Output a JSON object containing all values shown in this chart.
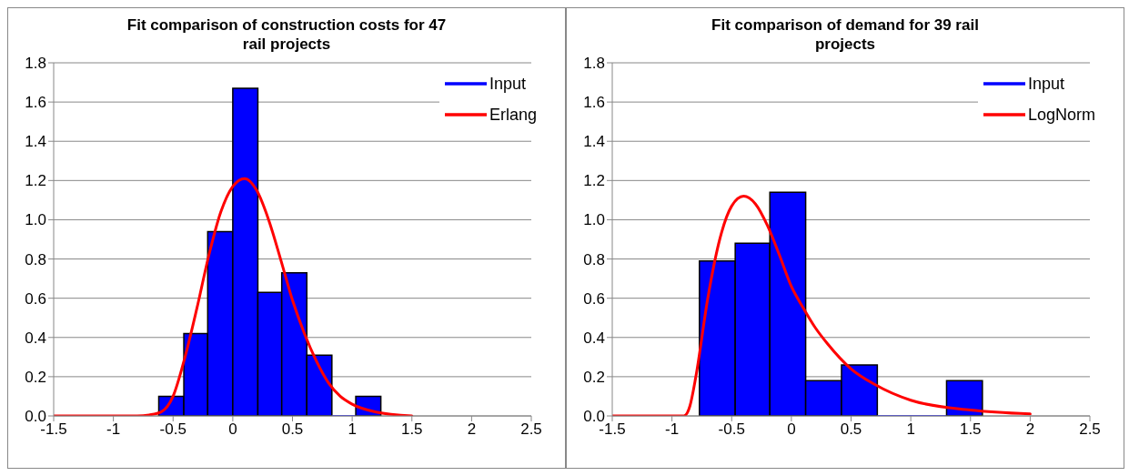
{
  "chart_data": [
    {
      "type": "histogram",
      "title": "Fit comparison of construction costs for 47 rail projects",
      "bins": [
        -0.62,
        -0.41,
        -0.21,
        0,
        0.21,
        0.41,
        0.62,
        0.83,
        1.03,
        1.24
      ],
      "xlim": [
        -1.5,
        2.5
      ],
      "xticks": [
        -1.5,
        -1,
        -0.5,
        0,
        0.5,
        1,
        1.5,
        2,
        2.5
      ],
      "ylim": [
        0,
        1.8
      ],
      "yticks": [
        {
          "value": 0,
          "label": "0.0"
        },
        {
          "value": 0.2,
          "label": "0.2"
        },
        {
          "value": 0.4,
          "label": "0.4"
        },
        {
          "value": 0.6,
          "label": "0.6"
        },
        {
          "value": 0.8,
          "label": "0.8"
        },
        {
          "value": 1,
          "label": "1.0"
        },
        {
          "value": 1.2,
          "label": "1.2"
        },
        {
          "value": 1.4,
          "label": "1.4"
        },
        {
          "value": 1.6,
          "label": "1.6"
        },
        {
          "value": 1.8,
          "label": "1.8"
        }
      ],
      "grid": "y",
      "legend": "top right",
      "series": [
        {
          "name": "Input",
          "color": "#0000ff",
          "values": [
            0.1,
            0.42,
            0.94,
            1.67,
            0.63,
            0.73,
            0.31,
            0,
            0.1
          ]
        },
        {
          "name": "Erlang",
          "type": "line",
          "color": "#ff0000",
          "x": [
            -1.5,
            -1,
            -0.8,
            -0.7,
            -0.6,
            -0.5,
            -0.4,
            -0.3,
            -0.2,
            -0.1,
            0,
            0.1,
            0.2,
            0.3,
            0.4,
            0.5,
            0.6,
            0.7,
            0.8,
            0.9,
            1,
            1.2,
            1.5
          ],
          "values": [
            0,
            0,
            0,
            0.005,
            0.02,
            0.1,
            0.3,
            0.55,
            0.82,
            1.04,
            1.17,
            1.21,
            1.15,
            1,
            0.8,
            0.59,
            0.42,
            0.28,
            0.17,
            0.1,
            0.06,
            0.02,
            0
          ]
        }
      ]
    },
    {
      "type": "histogram",
      "title": "Fit comparison of demand for 39 rail projects",
      "bins": [
        -0.77,
        -0.47,
        -0.18,
        0.12,
        0.42,
        0.72,
        1.3,
        1.6
      ],
      "xlim": [
        -1.5,
        2.5
      ],
      "xticks": [
        -1.5,
        -1,
        -0.5,
        0,
        0.5,
        1,
        1.5,
        2,
        2.5
      ],
      "ylim": [
        0,
        1.8
      ],
      "yticks": [
        {
          "value": 0,
          "label": "0.0"
        },
        {
          "value": 0.2,
          "label": "0.2"
        },
        {
          "value": 0.4,
          "label": "0.4"
        },
        {
          "value": 0.6,
          "label": "0.6"
        },
        {
          "value": 0.8,
          "label": "0.8"
        },
        {
          "value": 1,
          "label": "1.0"
        },
        {
          "value": 1.2,
          "label": "1.2"
        },
        {
          "value": 1.4,
          "label": "1.4"
        },
        {
          "value": 1.6,
          "label": "1.6"
        },
        {
          "value": 1.8,
          "label": "1.8"
        }
      ],
      "grid": "y",
      "legend": "top right",
      "series": [
        {
          "name": "Input",
          "color": "#0000ff",
          "values": [
            0.79,
            0.88,
            1.14,
            0.18,
            0.26,
            0,
            0.18
          ]
        },
        {
          "name": "LogNorm",
          "type": "line",
          "color": "#ff0000",
          "x": [
            -1.5,
            -1,
            -0.9,
            -0.85,
            -0.8,
            -0.7,
            -0.6,
            -0.5,
            -0.4,
            -0.3,
            -0.2,
            -0.1,
            0,
            0.1,
            0.2,
            0.3,
            0.5,
            0.7,
            1,
            1.5,
            2
          ],
          "values": [
            0,
            0,
            0,
            0.05,
            0.2,
            0.6,
            0.9,
            1.07,
            1.12,
            1.08,
            0.97,
            0.82,
            0.66,
            0.55,
            0.45,
            0.37,
            0.24,
            0.16,
            0.08,
            0.03,
            0.01
          ]
        }
      ]
    }
  ]
}
